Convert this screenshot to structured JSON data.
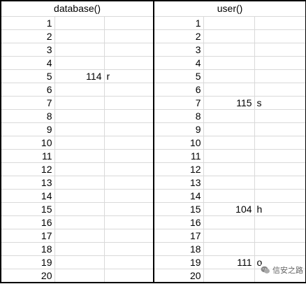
{
  "sheet": {
    "left_header": "database()",
    "right_header": "user()",
    "rows": [
      {
        "n": "1",
        "lv": "",
        "lc": "",
        "rn": "1",
        "rv": "",
        "rc": ""
      },
      {
        "n": "2",
        "lv": "",
        "lc": "",
        "rn": "2",
        "rv": "",
        "rc": ""
      },
      {
        "n": "3",
        "lv": "",
        "lc": "",
        "rn": "3",
        "rv": "",
        "rc": ""
      },
      {
        "n": "4",
        "lv": "",
        "lc": "",
        "rn": "4",
        "rv": "",
        "rc": ""
      },
      {
        "n": "5",
        "lv": "114",
        "lc": "r",
        "rn": "5",
        "rv": "",
        "rc": ""
      },
      {
        "n": "6",
        "lv": "",
        "lc": "",
        "rn": "6",
        "rv": "",
        "rc": ""
      },
      {
        "n": "7",
        "lv": "",
        "lc": "",
        "rn": "7",
        "rv": "115",
        "rc": "s"
      },
      {
        "n": "8",
        "lv": "",
        "lc": "",
        "rn": "8",
        "rv": "",
        "rc": ""
      },
      {
        "n": "9",
        "lv": "",
        "lc": "",
        "rn": "9",
        "rv": "",
        "rc": ""
      },
      {
        "n": "10",
        "lv": "",
        "lc": "",
        "rn": "10",
        "rv": "",
        "rc": ""
      },
      {
        "n": "11",
        "lv": "",
        "lc": "",
        "rn": "11",
        "rv": "",
        "rc": ""
      },
      {
        "n": "12",
        "lv": "",
        "lc": "",
        "rn": "12",
        "rv": "",
        "rc": ""
      },
      {
        "n": "13",
        "lv": "",
        "lc": "",
        "rn": "13",
        "rv": "",
        "rc": ""
      },
      {
        "n": "14",
        "lv": "",
        "lc": "",
        "rn": "14",
        "rv": "",
        "rc": ""
      },
      {
        "n": "15",
        "lv": "",
        "lc": "",
        "rn": "15",
        "rv": "104",
        "rc": "h"
      },
      {
        "n": "16",
        "lv": "",
        "lc": "",
        "rn": "16",
        "rv": "",
        "rc": ""
      },
      {
        "n": "17",
        "lv": "",
        "lc": "",
        "rn": "17",
        "rv": "",
        "rc": ""
      },
      {
        "n": "18",
        "lv": "",
        "lc": "",
        "rn": "18",
        "rv": "",
        "rc": ""
      },
      {
        "n": "19",
        "lv": "",
        "lc": "",
        "rn": "19",
        "rv": "111",
        "rc": "o"
      },
      {
        "n": "20",
        "lv": "",
        "lc": "",
        "rn": "20",
        "rv": "",
        "rc": ""
      }
    ]
  },
  "watermark": {
    "text": "信安之路",
    "icon": "wechat-icon"
  },
  "colors": {
    "grid_line": "#d9d9d9",
    "border": "#000000"
  }
}
